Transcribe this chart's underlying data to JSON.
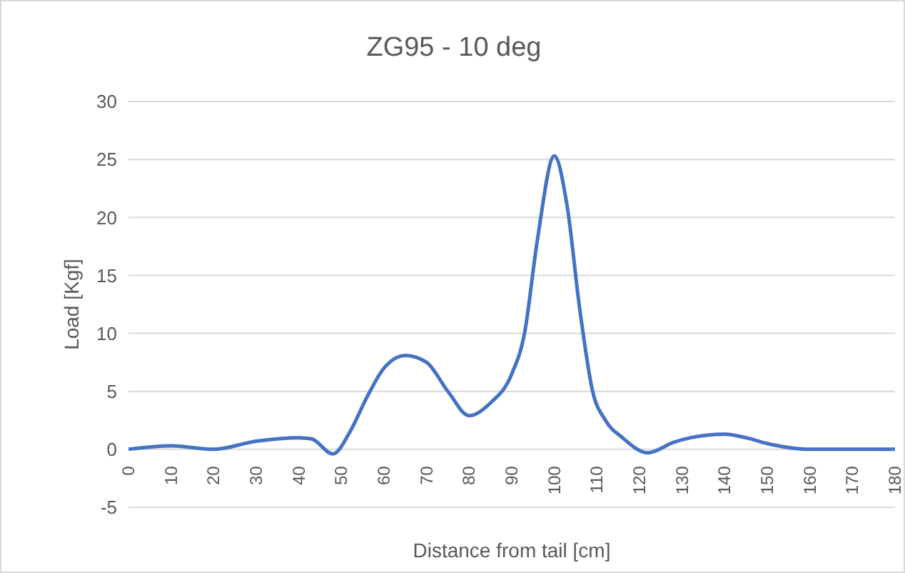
{
  "chart_data": {
    "type": "line",
    "title": "ZG95 - 10 deg",
    "xlabel": "Distance from tail [cm]",
    "ylabel": "Load [Kgf]",
    "x": [
      0,
      10,
      20,
      30,
      40,
      43,
      48,
      52,
      56,
      60,
      65,
      70,
      75,
      80,
      85,
      90,
      93,
      96,
      100,
      103,
      106,
      109,
      112,
      116,
      122,
      128,
      132,
      140,
      145,
      150,
      160,
      170,
      180
    ],
    "series": [
      {
        "color": "#4472c4",
        "values": [
          0,
          0.3,
          0,
          0.7,
          1.0,
          0.9,
          -0.4,
          1.5,
          4.5,
          7,
          8.1,
          7.5,
          5,
          2.9,
          4,
          6.5,
          10,
          18,
          25.3,
          21,
          12,
          5,
          2.5,
          1,
          -0.3,
          0.6,
          1,
          1.3,
          1,
          0.5,
          0,
          0,
          0
        ]
      }
    ],
    "xlim": [
      0,
      180
    ],
    "xticks": [
      0,
      10,
      20,
      30,
      40,
      50,
      60,
      70,
      80,
      90,
      100,
      110,
      120,
      130,
      140,
      150,
      160,
      170,
      180
    ],
    "ylim": [
      -5,
      30
    ],
    "yticks": [
      -5,
      0,
      5,
      10,
      15,
      20,
      25,
      30
    ],
    "grid": "y",
    "legend": false,
    "marker": "none",
    "line_style": "solid"
  }
}
